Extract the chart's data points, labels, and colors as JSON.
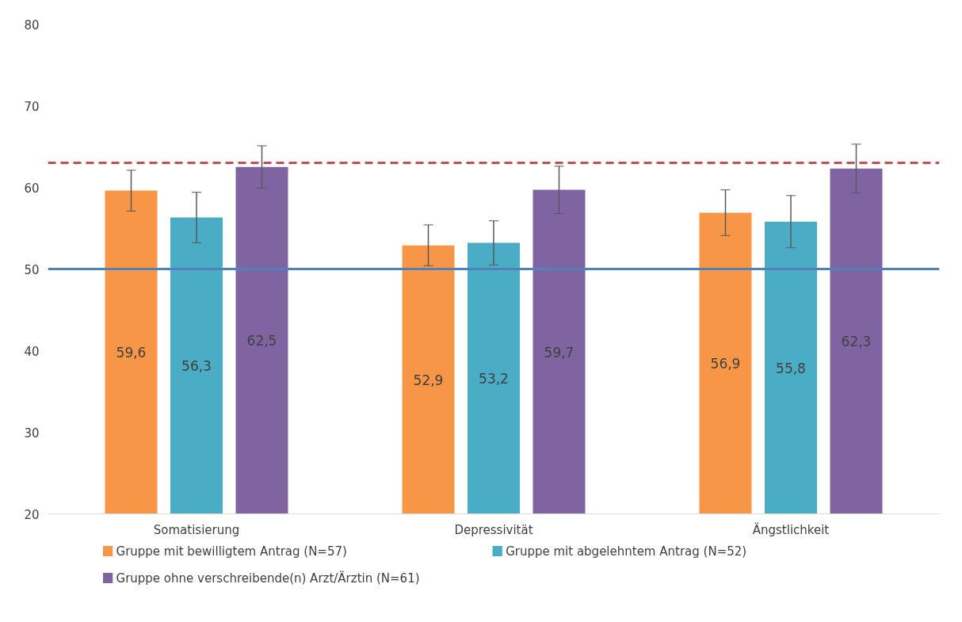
{
  "chart_data": {
    "type": "bar",
    "categories": [
      "Somatisierung",
      "Depressivität",
      "Ängstlichkeit"
    ],
    "series": [
      {
        "name": "Gruppe mit bewilligtem Antrag (N=57)",
        "color": "#f79646",
        "values": [
          59.6,
          52.9,
          56.9
        ],
        "value_labels": [
          "59,6",
          "52,9",
          "56,9"
        ],
        "errors": [
          2.5,
          2.5,
          2.8
        ]
      },
      {
        "name": "Gruppe mit abgelehntem Antrag (N=52)",
        "color": "#4bacc6",
        "values": [
          56.3,
          53.2,
          55.8
        ],
        "value_labels": [
          "56,3",
          "53,2",
          "55,8"
        ],
        "errors": [
          3.1,
          2.7,
          3.2
        ]
      },
      {
        "name": "Gruppe ohne verschreibende(n) Arzt/Ärztin (N=61)",
        "color": "#8064a2",
        "values": [
          62.5,
          59.7,
          62.3
        ],
        "value_labels": [
          "62,5",
          "59,7",
          "62,3"
        ],
        "errors": [
          2.6,
          2.9,
          3.0
        ]
      }
    ],
    "ylim": [
      20,
      80
    ],
    "yticks": [
      20,
      30,
      40,
      50,
      60,
      70,
      80
    ],
    "ref_lines": [
      {
        "axis": "y",
        "value": 63,
        "color": "#c0504d",
        "line_style": "dashed"
      },
      {
        "axis": "y",
        "value": 50,
        "color": "#4f81bd",
        "line_style": "solid"
      }
    ],
    "grid": false,
    "legend": "bottom"
  }
}
